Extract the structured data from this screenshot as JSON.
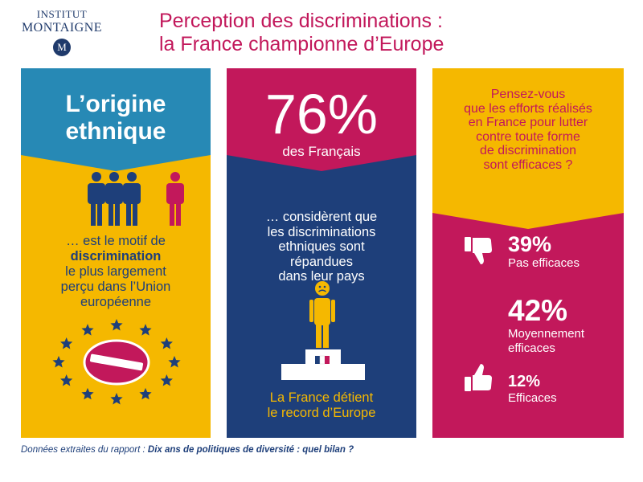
{
  "logo": {
    "line1": "INSTITUT",
    "line2": "MONTAIGNE",
    "mark": "M"
  },
  "title": {
    "line1": "Perception des discriminations :",
    "line2": "la France championne d’Europe"
  },
  "panel1": {
    "heading": [
      "L’origine",
      "ethnique"
    ],
    "text_before": "… est le motif de",
    "text_bold": "discrimination",
    "text_after": [
      "le plus largement",
      "perçu dans l’Union",
      "européenne"
    ],
    "icons": [
      "people-group-icon",
      "sad-person-icon",
      "eu-stars-no-entry-icon"
    ],
    "colors": {
      "top": "#2789b5",
      "bottom": "#f5b800"
    }
  },
  "panel2": {
    "percent": "76%",
    "subject": "des Français",
    "description": [
      "… considèrent que",
      "les discriminations",
      "ethniques sont",
      "répandues",
      "dans leur pays"
    ],
    "footer": [
      "La France détient",
      "le record d’Europe"
    ],
    "icons": [
      "sad-face-icon",
      "podium-icon",
      "french-flag-icon"
    ],
    "colors": {
      "top": "#c2185b",
      "bottom": "#1e3f7a"
    }
  },
  "panel3": {
    "question": [
      "Pensez-vous",
      "que les efforts réalisés",
      "en France pour lutter",
      "contre toute forme",
      "de discrimination",
      "sont efficaces ?"
    ],
    "stats": [
      {
        "percent": "39%",
        "label": [
          "Pas efficaces"
        ],
        "icon": "thumbs-down-icon"
      },
      {
        "percent": "42%",
        "label": [
          "Moyennement",
          "efficaces"
        ],
        "icon": "thumbs-neutral-icon"
      },
      {
        "percent": "12%",
        "label": [
          "Efficaces"
        ],
        "icon": "thumbs-up-icon"
      }
    ],
    "colors": {
      "top": "#f5b800",
      "bottom": "#c2185b"
    }
  },
  "source": {
    "prefix": "Données extraites du rapport :",
    "report": "Dix ans de politiques de diversité : quel bilan ?"
  }
}
